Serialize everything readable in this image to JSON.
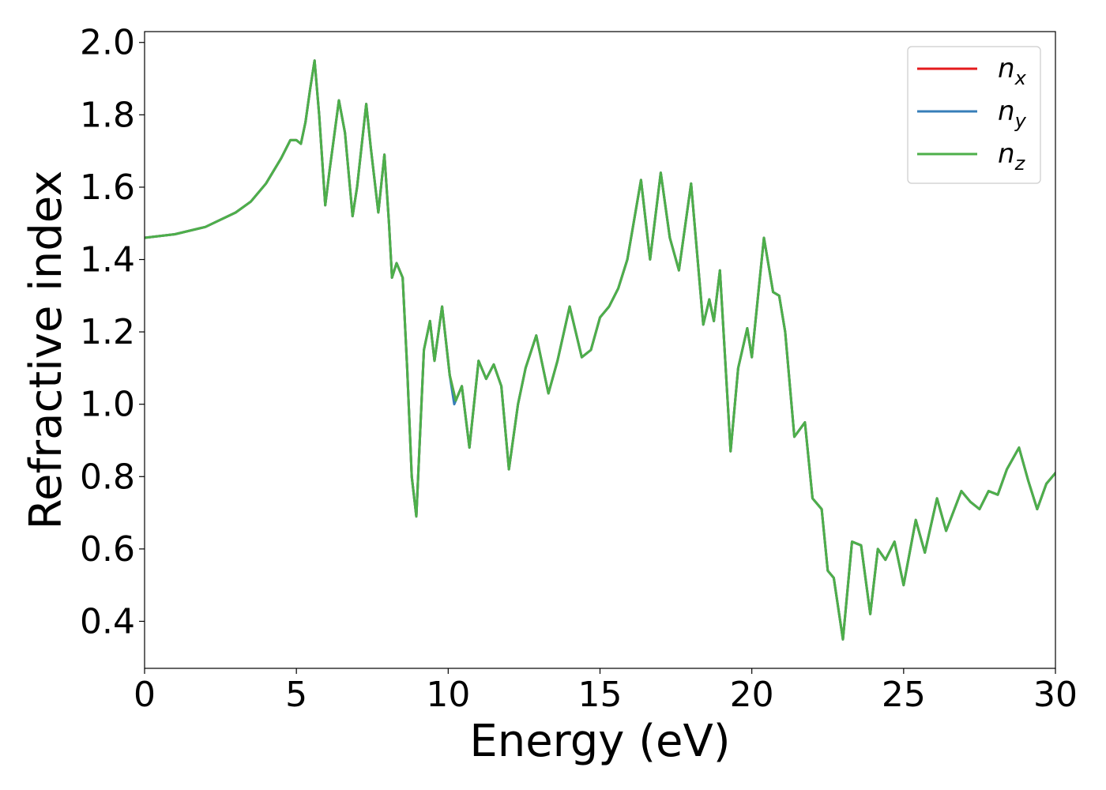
{
  "chart_data": {
    "type": "line",
    "title": "",
    "xlabel": "Energy (eV)",
    "ylabel": "Refractive index",
    "xlim": [
      0,
      30
    ],
    "ylim": [
      0.27,
      2.03
    ],
    "xticks": [
      0,
      5,
      10,
      15,
      20,
      25,
      30
    ],
    "yticks": [
      0.4,
      0.6,
      0.8,
      1.0,
      1.2,
      1.4,
      1.6,
      1.8,
      2.0
    ],
    "xtick_labels": [
      "0",
      "5",
      "10",
      "15",
      "20",
      "25",
      "30"
    ],
    "ytick_labels": [
      "0.4",
      "0.6",
      "0.8",
      "1.0",
      "1.2",
      "1.4",
      "1.6",
      "1.8",
      "2.0"
    ],
    "grid": false,
    "legend_position": "top-right",
    "legend": [
      {
        "base": "n",
        "sub": "x",
        "color": "#e41a1c"
      },
      {
        "base": "n",
        "sub": "y",
        "color": "#377eb8"
      },
      {
        "base": "n",
        "sub": "z",
        "color": "#4daf4a"
      }
    ],
    "series": [
      {
        "name": "n_x",
        "color": "#e41a1c",
        "x": [
          0,
          1,
          2,
          3,
          3.5,
          4,
          4.5,
          4.8,
          5.0,
          5.15,
          5.3,
          5.45,
          5.6,
          5.75,
          5.95,
          6.1,
          6.4,
          6.6,
          6.85,
          7.0,
          7.3,
          7.45,
          7.7,
          7.9,
          8.05,
          8.15,
          8.3,
          8.5,
          8.65,
          8.8,
          8.95,
          9.2,
          9.4,
          9.55,
          9.8,
          10.05,
          10.25,
          10.45,
          10.7,
          11.0,
          11.25,
          11.5,
          11.75,
          12.0,
          12.3,
          12.55,
          12.9,
          13.3,
          13.6,
          14.0,
          14.4,
          14.7,
          15.0,
          15.3,
          15.6,
          15.9,
          16.35,
          16.65,
          17.0,
          17.3,
          17.6,
          18.0,
          18.4,
          18.6,
          18.75,
          18.95,
          19.3,
          19.55,
          19.85,
          20.0,
          20.4,
          20.7,
          20.9,
          21.1,
          21.4,
          21.75,
          22.0,
          22.3,
          22.5,
          22.7,
          23.0,
          23.3,
          23.6,
          23.9,
          24.15,
          24.4,
          24.7,
          25.0,
          25.4,
          25.7,
          26.1,
          26.4,
          26.9,
          27.2,
          27.5,
          27.8,
          28.1,
          28.4,
          28.8,
          29.1,
          29.4,
          29.7,
          30.0
        ],
        "values": [
          1.46,
          1.47,
          1.49,
          1.53,
          1.56,
          1.61,
          1.68,
          1.73,
          1.73,
          1.72,
          1.78,
          1.87,
          1.95,
          1.8,
          1.55,
          1.65,
          1.84,
          1.75,
          1.52,
          1.6,
          1.83,
          1.71,
          1.53,
          1.69,
          1.5,
          1.35,
          1.39,
          1.35,
          1.1,
          0.8,
          0.69,
          1.15,
          1.23,
          1.12,
          1.27,
          1.08,
          1.01,
          1.05,
          0.88,
          1.12,
          1.07,
          1.11,
          1.05,
          0.82,
          1.0,
          1.1,
          1.19,
          1.03,
          1.12,
          1.27,
          1.13,
          1.15,
          1.24,
          1.27,
          1.32,
          1.4,
          1.62,
          1.4,
          1.64,
          1.46,
          1.37,
          1.61,
          1.22,
          1.29,
          1.23,
          1.37,
          0.87,
          1.1,
          1.21,
          1.13,
          1.46,
          1.31,
          1.3,
          1.2,
          0.91,
          0.95,
          0.74,
          0.71,
          0.54,
          0.52,
          0.35,
          0.62,
          0.61,
          0.42,
          0.6,
          0.57,
          0.62,
          0.5,
          0.68,
          0.59,
          0.74,
          0.65,
          0.76,
          0.73,
          0.71,
          0.76,
          0.75,
          0.82,
          0.88,
          0.79,
          0.71,
          0.78,
          0.81
        ]
      },
      {
        "name": "n_y",
        "color": "#377eb8",
        "x": [
          0,
          1,
          2,
          3,
          3.5,
          4,
          4.5,
          4.8,
          5.0,
          5.15,
          5.3,
          5.45,
          5.6,
          5.75,
          5.95,
          6.1,
          6.4,
          6.6,
          6.85,
          7.0,
          7.3,
          7.45,
          7.7,
          7.9,
          8.05,
          8.15,
          8.3,
          8.5,
          8.65,
          8.8,
          8.95,
          9.2,
          9.4,
          9.55,
          9.8,
          10.05,
          10.2,
          10.45,
          10.7,
          11.0,
          11.25,
          11.5,
          11.75,
          12.0,
          12.3,
          12.55,
          12.9,
          13.3,
          13.6,
          14.0,
          14.4,
          14.7,
          15.0,
          15.3,
          15.6,
          15.9,
          16.35,
          16.65,
          17.0,
          17.3,
          17.6,
          18.0,
          18.4,
          18.6,
          18.75,
          18.95,
          19.3,
          19.55,
          19.85,
          20.0,
          20.4,
          20.7,
          20.9,
          21.1,
          21.4,
          21.75,
          22.0,
          22.3,
          22.5,
          22.7,
          23.0,
          23.3,
          23.6,
          23.9,
          24.15,
          24.4,
          24.7,
          25.0,
          25.4,
          25.7,
          26.1,
          26.4,
          26.9,
          27.2,
          27.5,
          27.8,
          28.1,
          28.4,
          28.8,
          29.1,
          29.4,
          29.7,
          30.0
        ],
        "values": [
          1.46,
          1.47,
          1.49,
          1.53,
          1.56,
          1.61,
          1.68,
          1.73,
          1.73,
          1.72,
          1.78,
          1.87,
          1.95,
          1.8,
          1.55,
          1.65,
          1.84,
          1.75,
          1.52,
          1.6,
          1.83,
          1.71,
          1.53,
          1.69,
          1.5,
          1.35,
          1.39,
          1.35,
          1.1,
          0.8,
          0.69,
          1.15,
          1.23,
          1.12,
          1.27,
          1.08,
          1.0,
          1.05,
          0.88,
          1.12,
          1.07,
          1.11,
          1.05,
          0.82,
          1.0,
          1.1,
          1.19,
          1.03,
          1.12,
          1.27,
          1.13,
          1.15,
          1.24,
          1.27,
          1.32,
          1.4,
          1.62,
          1.4,
          1.64,
          1.46,
          1.37,
          1.61,
          1.22,
          1.29,
          1.23,
          1.37,
          0.87,
          1.1,
          1.21,
          1.13,
          1.46,
          1.31,
          1.3,
          1.2,
          0.91,
          0.95,
          0.74,
          0.71,
          0.54,
          0.52,
          0.35,
          0.62,
          0.61,
          0.42,
          0.6,
          0.57,
          0.62,
          0.5,
          0.68,
          0.59,
          0.74,
          0.65,
          0.76,
          0.73,
          0.71,
          0.76,
          0.75,
          0.82,
          0.88,
          0.79,
          0.71,
          0.78,
          0.81
        ]
      },
      {
        "name": "n_z",
        "color": "#4daf4a",
        "x": [
          0,
          1,
          2,
          3,
          3.5,
          4,
          4.5,
          4.8,
          5.0,
          5.15,
          5.3,
          5.45,
          5.6,
          5.75,
          5.95,
          6.1,
          6.4,
          6.6,
          6.85,
          7.0,
          7.3,
          7.45,
          7.7,
          7.9,
          8.05,
          8.15,
          8.3,
          8.5,
          8.65,
          8.8,
          8.95,
          9.2,
          9.4,
          9.55,
          9.8,
          10.05,
          10.25,
          10.45,
          10.7,
          11.0,
          11.25,
          11.5,
          11.75,
          12.0,
          12.3,
          12.55,
          12.9,
          13.3,
          13.6,
          14.0,
          14.4,
          14.7,
          15.0,
          15.3,
          15.6,
          15.9,
          16.35,
          16.65,
          17.0,
          17.3,
          17.6,
          18.0,
          18.4,
          18.6,
          18.75,
          18.95,
          19.3,
          19.55,
          19.85,
          20.0,
          20.4,
          20.7,
          20.9,
          21.1,
          21.4,
          21.75,
          22.0,
          22.3,
          22.5,
          22.7,
          23.0,
          23.3,
          23.6,
          23.9,
          24.15,
          24.4,
          24.7,
          25.0,
          25.4,
          25.7,
          26.1,
          26.4,
          26.9,
          27.2,
          27.5,
          27.8,
          28.1,
          28.4,
          28.8,
          29.1,
          29.4,
          29.7,
          30.0
        ],
        "values": [
          1.46,
          1.47,
          1.49,
          1.53,
          1.56,
          1.61,
          1.68,
          1.73,
          1.73,
          1.72,
          1.78,
          1.87,
          1.95,
          1.8,
          1.55,
          1.65,
          1.84,
          1.75,
          1.52,
          1.6,
          1.83,
          1.71,
          1.53,
          1.69,
          1.5,
          1.35,
          1.39,
          1.35,
          1.1,
          0.8,
          0.69,
          1.15,
          1.23,
          1.12,
          1.27,
          1.08,
          1.01,
          1.05,
          0.88,
          1.12,
          1.07,
          1.11,
          1.05,
          0.82,
          1.0,
          1.1,
          1.19,
          1.03,
          1.12,
          1.27,
          1.13,
          1.15,
          1.24,
          1.27,
          1.32,
          1.4,
          1.62,
          1.4,
          1.64,
          1.46,
          1.37,
          1.61,
          1.22,
          1.29,
          1.23,
          1.37,
          0.87,
          1.1,
          1.21,
          1.13,
          1.46,
          1.31,
          1.3,
          1.2,
          0.91,
          0.95,
          0.74,
          0.71,
          0.54,
          0.52,
          0.35,
          0.62,
          0.61,
          0.42,
          0.6,
          0.57,
          0.62,
          0.5,
          0.68,
          0.59,
          0.74,
          0.65,
          0.76,
          0.73,
          0.71,
          0.76,
          0.75,
          0.82,
          0.88,
          0.79,
          0.71,
          0.78,
          0.81
        ]
      }
    ]
  }
}
